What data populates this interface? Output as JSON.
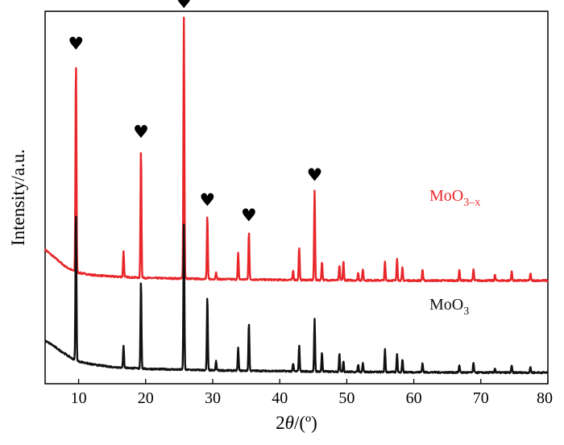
{
  "chart_data": {
    "type": "line",
    "title": "",
    "xlabel_parts": {
      "prefix": "2",
      "var": "θ",
      "suffix": "/(º)"
    },
    "ylabel": "Intensity/a.u.",
    "xlim": [
      5,
      80
    ],
    "xticks": [
      10,
      20,
      30,
      40,
      50,
      60,
      70,
      80
    ],
    "grid": false,
    "legend": "none",
    "series": [
      {
        "name_parts": {
          "base": "MoO",
          "sub": "3–x"
        },
        "color": "#e8262a",
        "baseline": {
          "x": [
            5,
            6,
            7,
            8,
            9,
            10,
            12,
            15,
            20,
            30,
            40,
            50,
            60,
            70,
            80
          ],
          "y": [
            0.36,
            0.345,
            0.33,
            0.315,
            0.305,
            0.298,
            0.292,
            0.288,
            0.284,
            0.281,
            0.279,
            0.278,
            0.277,
            0.277,
            0.277
          ]
        },
        "peaks": [
          {
            "x": 9.6,
            "h": 0.57
          },
          {
            "x": 16.7,
            "h": 0.07
          },
          {
            "x": 19.3,
            "h": 0.35
          },
          {
            "x": 25.7,
            "h": 0.7
          },
          {
            "x": 29.2,
            "h": 0.17
          },
          {
            "x": 30.5,
            "h": 0.02
          },
          {
            "x": 33.8,
            "h": 0.07
          },
          {
            "x": 35.4,
            "h": 0.13
          },
          {
            "x": 42.0,
            "h": 0.025
          },
          {
            "x": 42.9,
            "h": 0.09
          },
          {
            "x": 45.2,
            "h": 0.24
          },
          {
            "x": 46.3,
            "h": 0.05
          },
          {
            "x": 48.9,
            "h": 0.04
          },
          {
            "x": 49.5,
            "h": 0.05
          },
          {
            "x": 51.7,
            "h": 0.02
          },
          {
            "x": 52.4,
            "h": 0.03
          },
          {
            "x": 55.7,
            "h": 0.05
          },
          {
            "x": 57.5,
            "h": 0.06
          },
          {
            "x": 58.3,
            "h": 0.035
          },
          {
            "x": 61.3,
            "h": 0.03
          },
          {
            "x": 66.8,
            "h": 0.03
          },
          {
            "x": 68.9,
            "h": 0.03
          },
          {
            "x": 72.1,
            "h": 0.015
          },
          {
            "x": 74.6,
            "h": 0.025
          },
          {
            "x": 77.4,
            "h": 0.02
          }
        ]
      },
      {
        "name_parts": {
          "base": "MoO",
          "sub": "3"
        },
        "color": "#111111",
        "baseline": {
          "x": [
            5,
            6,
            7,
            8,
            9,
            10,
            12,
            15,
            20,
            30,
            40,
            50,
            60,
            70,
            80
          ],
          "y": [
            0.115,
            0.105,
            0.092,
            0.08,
            0.068,
            0.06,
            0.052,
            0.045,
            0.04,
            0.036,
            0.034,
            0.032,
            0.031,
            0.03,
            0.03
          ]
        },
        "peaks": [
          {
            "x": 9.6,
            "h": 0.4
          },
          {
            "x": 16.7,
            "h": 0.06
          },
          {
            "x": 19.3,
            "h": 0.24
          },
          {
            "x": 25.7,
            "h": 0.39
          },
          {
            "x": 29.2,
            "h": 0.2
          },
          {
            "x": 30.5,
            "h": 0.025
          },
          {
            "x": 33.8,
            "h": 0.06
          },
          {
            "x": 35.4,
            "h": 0.13
          },
          {
            "x": 42.0,
            "h": 0.02
          },
          {
            "x": 42.9,
            "h": 0.07
          },
          {
            "x": 45.2,
            "h": 0.14
          },
          {
            "x": 46.3,
            "h": 0.05
          },
          {
            "x": 48.9,
            "h": 0.05
          },
          {
            "x": 49.5,
            "h": 0.03
          },
          {
            "x": 51.7,
            "h": 0.02
          },
          {
            "x": 52.4,
            "h": 0.025
          },
          {
            "x": 55.7,
            "h": 0.06
          },
          {
            "x": 57.5,
            "h": 0.05
          },
          {
            "x": 58.3,
            "h": 0.035
          },
          {
            "x": 61.3,
            "h": 0.025
          },
          {
            "x": 66.8,
            "h": 0.02
          },
          {
            "x": 68.9,
            "h": 0.025
          },
          {
            "x": 72.1,
            "h": 0.012
          },
          {
            "x": 74.6,
            "h": 0.018
          },
          {
            "x": 77.4,
            "h": 0.015
          }
        ]
      }
    ],
    "annotations": {
      "symbol": "♥",
      "peaks_x": [
        9.6,
        19.3,
        25.7,
        29.2,
        35.4,
        45.2
      ]
    }
  }
}
